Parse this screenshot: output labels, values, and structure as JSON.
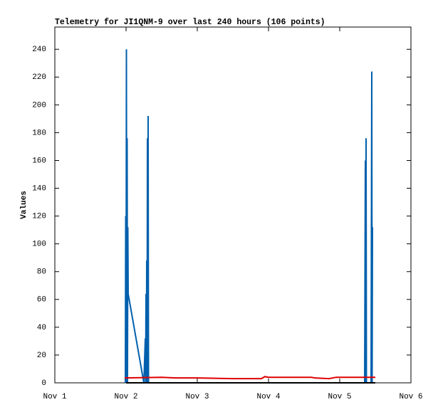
{
  "chart_data": {
    "type": "line",
    "title": "Telemetry for JI1QNM-9 over last 240 hours (106 points)",
    "y_label": "Values",
    "xlim": [
      1,
      6
    ],
    "xticks": [
      {
        "value": 1,
        "label": "Nov 1"
      },
      {
        "value": 2,
        "label": "Nov 2"
      },
      {
        "value": 3,
        "label": "Nov 3"
      },
      {
        "value": 4,
        "label": "Nov 4"
      },
      {
        "value": 5,
        "label": "Nov 5"
      },
      {
        "value": 6,
        "label": "Nov 6"
      }
    ],
    "ylim": [
      0,
      256
    ],
    "yticks": [
      0,
      20,
      40,
      60,
      80,
      100,
      120,
      140,
      160,
      180,
      200,
      220,
      240
    ],
    "series": [
      {
        "color": "#0060ad",
        "x": [
          1.99,
          1.995,
          2.0,
          2.005,
          2.01,
          2.015,
          2.02,
          2.025,
          2.03,
          2.25,
          2.27,
          2.275,
          2.28,
          2.285,
          2.29,
          2.295,
          2.3,
          2.305,
          2.31,
          2.315,
          5.35,
          5.36,
          5.365,
          5.37,
          5.375,
          5.44,
          5.45,
          5.455,
          5.46
        ],
        "values": [
          0,
          120,
          0,
          240,
          0,
          176,
          0,
          112,
          64,
          0,
          32,
          0,
          64,
          0,
          88,
          0,
          176,
          0,
          192,
          0,
          0,
          160,
          0,
          176,
          0,
          0,
          224,
          0,
          112
        ]
      },
      {
        "color": "#e00000",
        "x": [
          1.98,
          2.5,
          2.7,
          3.0,
          3.5,
          3.9,
          3.95,
          4.0,
          4.6,
          4.65,
          4.85,
          4.95,
          5.5
        ],
        "values": [
          3.5,
          4,
          3.5,
          3.5,
          3,
          3,
          4.5,
          4,
          4,
          3.5,
          3,
          4,
          4
        ]
      },
      {
        "color": "#000000",
        "x": [
          2.0,
          5.5
        ],
        "values": [
          0,
          0
        ]
      }
    ]
  }
}
